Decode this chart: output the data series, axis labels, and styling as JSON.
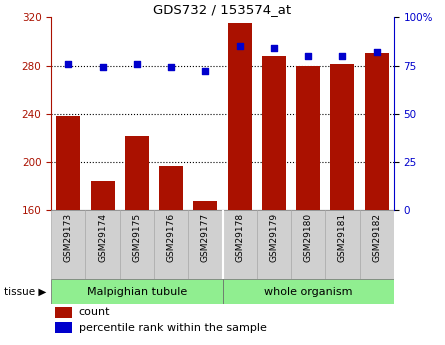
{
  "title": "GDS732 / 153574_at",
  "samples": [
    "GSM29173",
    "GSM29174",
    "GSM29175",
    "GSM29176",
    "GSM29177",
    "GSM29178",
    "GSM29179",
    "GSM29180",
    "GSM29181",
    "GSM29182"
  ],
  "counts": [
    238,
    184,
    222,
    197,
    168,
    315,
    288,
    280,
    281,
    290
  ],
  "percentile_ranks": [
    76,
    74,
    76,
    74,
    72,
    85,
    84,
    80,
    80,
    82
  ],
  "group_labels": [
    "Malpighian tubule",
    "whole organism"
  ],
  "group_split": 5,
  "bar_color": "#AA1100",
  "dot_color": "#0000CC",
  "left_ylim": [
    160,
    320
  ],
  "left_yticks": [
    160,
    200,
    240,
    280,
    320
  ],
  "right_ylim": [
    0,
    100
  ],
  "right_yticks": [
    0,
    25,
    50,
    75,
    100
  ],
  "tissue_label": "tissue",
  "legend_count_label": "count",
  "legend_pct_label": "percentile rank within the sample",
  "bar_width": 0.7,
  "group_color": "#90EE90",
  "tick_bg_color": "#D0D0D0",
  "tick_border_color": "#AAAAAA"
}
